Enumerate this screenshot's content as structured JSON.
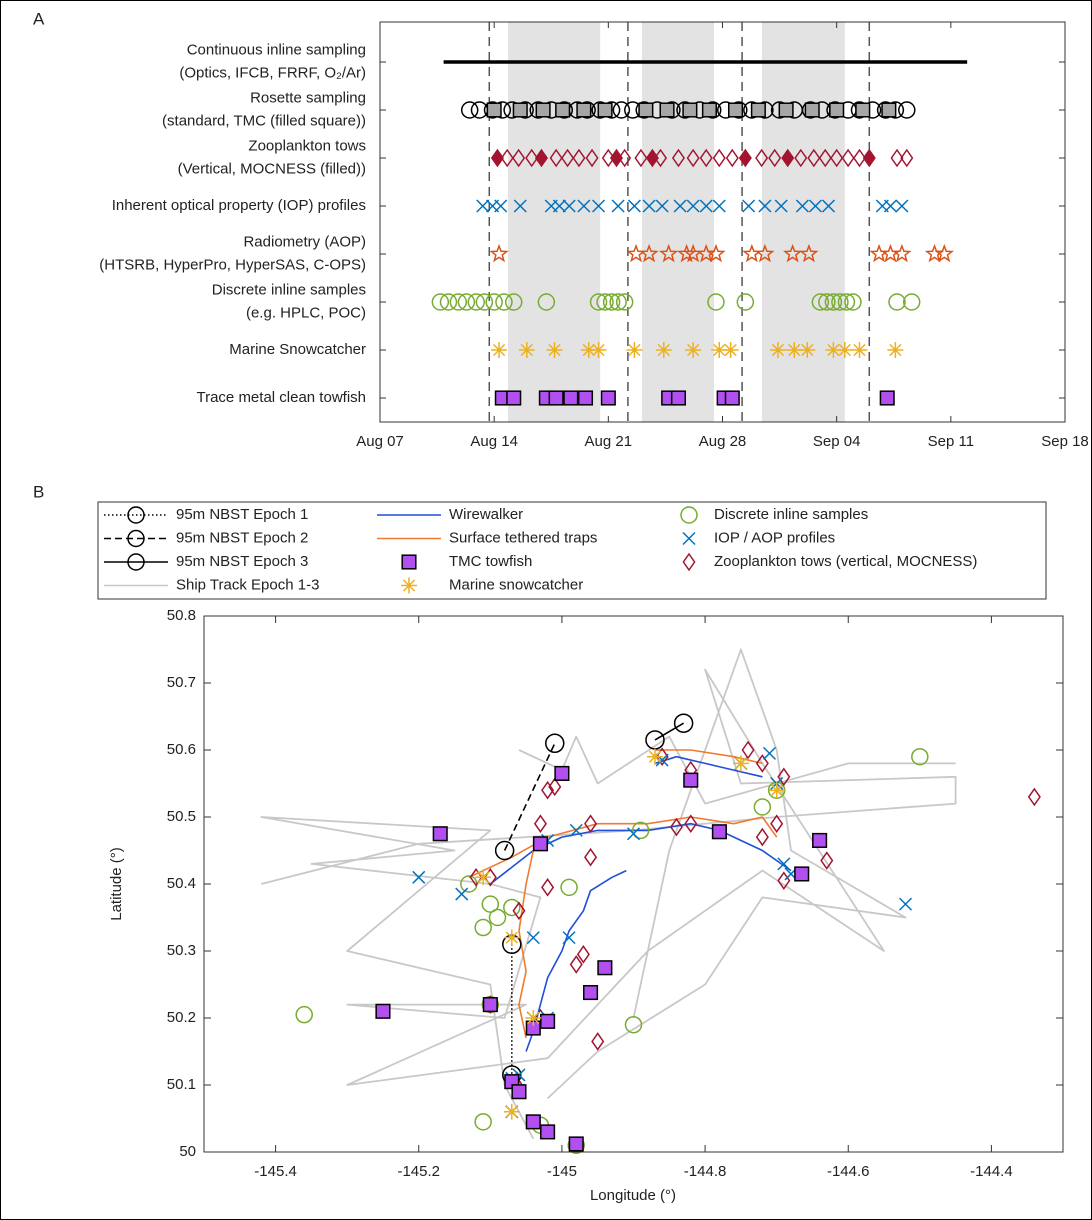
{
  "chart_data": [
    {
      "type": "timeline",
      "panel_label": "A",
      "xlim": [
        7,
        49
      ],
      "xticks": [
        {
          "value": 7,
          "label": "Aug 07"
        },
        {
          "value": 14,
          "label": "Aug 14"
        },
        {
          "value": 21,
          "label": "Aug 21"
        },
        {
          "value": 28,
          "label": "Aug 28"
        },
        {
          "value": 35,
          "label": "Sep 04"
        },
        {
          "value": 42,
          "label": "Sep 11"
        },
        {
          "value": 49,
          "label": "Sep 18"
        }
      ],
      "epoch_boundaries": [
        13.7,
        22.2,
        29.2,
        37.0
      ],
      "shaded": [
        [
          14.85,
          20.5
        ],
        [
          23.06,
          27.48
        ],
        [
          30.42,
          35.5
        ]
      ],
      "rows": [
        {
          "label": [
            "Continuous inline sampling",
            "(Optics, IFCB, FRRF, O₂/Ar)"
          ],
          "series": [
            {
              "marker": "line",
              "color": "#000000",
              "x": [
                10.9,
                43.0
              ]
            }
          ]
        },
        {
          "label": [
            "Rosette sampling",
            "(standard, TMC (filled square))"
          ],
          "series": [
            {
              "marker": "circle",
              "color": "#000000",
              "fill": "none",
              "x": [
                12.5,
                13.1,
                13.9,
                14.5,
                15.1,
                15.9,
                16.7,
                17.5,
                18.3,
                19.1,
                19.7,
                20.5,
                21.2,
                21.8,
                22.5,
                23.2,
                24.0,
                24.9,
                25.7,
                26.6,
                27.4,
                28.2,
                29.0,
                29.8,
                30.6,
                31.5,
                32.4,
                33.4,
                34.1,
                34.9,
                35.7,
                36.4,
                37.2,
                38.0,
                38.6,
                39.3
              ]
            },
            {
              "marker": "square",
              "color": "#000000",
              "fill": "#a6a6a6",
              "x": [
                14.0,
                15.6,
                17.0,
                18.2,
                19.5,
                20.8,
                23.3,
                24.6,
                26.0,
                27.2,
                28.8,
                30.2,
                31.9,
                33.5,
                35.0,
                36.6,
                38.2
              ]
            }
          ]
        },
        {
          "label": [
            "Zooplankton tows",
            "(Vertical, MOCNESS (filled))"
          ],
          "series": [
            {
              "marker": "diamond",
              "color": "#a2142f",
              "fill": "none",
              "x": [
                14.8,
                15.5,
                16.3,
                17.8,
                18.5,
                19.2,
                20.0,
                21.0,
                22.0,
                23.0,
                24.2,
                25.3,
                26.2,
                27.0,
                27.8,
                28.6,
                30.4,
                31.2,
                32.8,
                33.6,
                34.3,
                35.0,
                35.7,
                36.4,
                38.7,
                39.3
              ]
            },
            {
              "marker": "diamond",
              "color": "#a2142f",
              "fill": "#a2142f",
              "x": [
                14.2,
                16.9,
                21.5,
                23.7,
                29.4,
                32.0,
                37.0
              ]
            }
          ]
        },
        {
          "label": [
            "Inherent optical property (IOP) profiles"
          ],
          "series": [
            {
              "marker": "x",
              "color": "#0072bd",
              "fill": "none",
              "x": [
                13.3,
                13.9,
                14.4,
                15.6,
                17.5,
                18.0,
                18.6,
                19.5,
                20.4,
                21.6,
                22.6,
                23.5,
                24.3,
                25.4,
                26.2,
                27.0,
                27.8,
                29.6,
                30.6,
                31.6,
                32.9,
                33.7,
                34.5,
                37.8,
                38.3,
                39.0
              ]
            }
          ]
        },
        {
          "label": [
            "Radiometry (AOP)",
            "(HTSRB, HyperPro, HyperSAS, C-OPS)"
          ],
          "series": [
            {
              "marker": "star",
              "color": "#d95319",
              "fill": "none",
              "x": [
                14.3,
                22.7,
                23.5,
                24.7,
                25.8,
                26.2,
                27.0,
                27.6,
                29.8,
                30.6,
                32.3,
                33.3,
                37.6,
                38.3,
                39.0,
                41.0,
                41.6
              ]
            }
          ]
        },
        {
          "label": [
            "Discrete inline samples",
            "(e.g. HPLC, POC)"
          ],
          "series": [
            {
              "marker": "circle",
              "color": "#77ac30",
              "fill": "none",
              "x": [
                10.7,
                11.2,
                11.8,
                12.3,
                12.9,
                13.4,
                14.0,
                14.6,
                15.2,
                17.2,
                20.4,
                20.8,
                21.2,
                21.6,
                22.0,
                27.6,
                29.4,
                34.0,
                34.4,
                34.8,
                35.2,
                35.6,
                36.0,
                38.7,
                39.6
              ]
            }
          ]
        },
        {
          "label": [
            "Marine Snowcatcher"
          ],
          "series": [
            {
              "marker": "asterisk",
              "color": "#edb120",
              "fill": "none",
              "x": [
                14.3,
                16.0,
                17.7,
                19.8,
                20.4,
                22.6,
                24.4,
                26.2,
                27.8,
                28.5,
                31.4,
                32.4,
                33.2,
                34.8,
                35.5,
                36.4,
                38.6
              ]
            }
          ]
        },
        {
          "label": [
            "Trace metal clean towfish"
          ],
          "series": [
            {
              "marker": "square",
              "color": "#000000",
              "fill": "#b24ff0",
              "x": [
                14.5,
                15.2,
                17.2,
                17.8,
                18.7,
                19.6,
                21.0,
                24.7,
                25.3,
                28.1,
                28.6,
                38.1
              ]
            }
          ]
        }
      ]
    },
    {
      "type": "map",
      "panel_label": "B",
      "xlabel": "Longitude (°)",
      "ylabel": "Latitude (°)",
      "xlim": [
        -145.5,
        -144.3
      ],
      "ylim": [
        50,
        50.8
      ],
      "xticks": [
        -145.4,
        -145.2,
        -145,
        -144.8,
        -144.6,
        -144.4
      ],
      "yticks": [
        50,
        50.1,
        50.2,
        50.3,
        50.4,
        50.5,
        50.6,
        50.7,
        50.8
      ],
      "series": [
        {
          "name": "95m NBST Epoch 1",
          "color": "#000000",
          "line": "dotted",
          "marker": "circle",
          "fill": "none",
          "x": [
            -145.07,
            -145.07
          ],
          "y": [
            50.31,
            50.115
          ]
        },
        {
          "name": "95m NBST Epoch 2",
          "color": "#000000",
          "line": "dashed",
          "marker": "circle",
          "fill": "none",
          "x": [
            -145.08,
            -145.01
          ],
          "y": [
            50.45,
            50.61
          ]
        },
        {
          "name": "95m NBST Epoch 3",
          "color": "#000000",
          "line": "solid",
          "marker": "circle",
          "fill": "none",
          "x": [
            -144.87,
            -144.83
          ],
          "y": [
            50.615,
            50.64
          ]
        },
        {
          "name": "Ship Track Epoch 1-3",
          "color": "#c8c8c8",
          "line": "solid",
          "marker": "none",
          "fill": "none",
          "x": [
            -145.42,
            -145.2,
            -145.05,
            -144.9,
            -144.7,
            -144.45,
            -144.45,
            -144.75,
            -144.8,
            -144.72,
            -144.55,
            -144.72,
            -144.88,
            -145.02,
            -145.3,
            -145.05,
            -145.3,
            -145.08,
            -145.03,
            -145.1,
            -145.35,
            -145.15,
            -145.42,
            -145.1,
            -145.3,
            -145.1,
            -145.08,
            -145.04,
            null,
            -145.06,
            -145.0,
            -144.98,
            -144.95,
            -144.85,
            -144.8,
            -144.6,
            -144.45,
            null,
            -144.9,
            -144.85,
            -144.75,
            -144.7,
            -144.68,
            -144.6,
            -144.52,
            -144.72,
            -144.8,
            -144.95,
            -145.02
          ],
          "y": [
            50.4,
            50.46,
            50.47,
            50.48,
            50.5,
            50.52,
            50.56,
            50.55,
            50.72,
            50.58,
            50.3,
            50.42,
            50.3,
            50.14,
            50.1,
            50.22,
            50.22,
            50.2,
            50.38,
            50.4,
            50.43,
            50.45,
            50.5,
            50.48,
            50.3,
            50.25,
            50.1,
            50.02,
            null,
            50.6,
            50.57,
            50.62,
            50.55,
            50.62,
            50.52,
            50.58,
            50.58,
            null,
            50.2,
            50.45,
            50.75,
            50.6,
            50.45,
            50.4,
            50.35,
            50.38,
            50.25,
            50.15,
            50.08
          ]
        },
        {
          "name": "Wirewalker",
          "color": "#1f4fd8",
          "line": "solid",
          "marker": "none",
          "fill": "none",
          "x": [
            -144.91,
            -144.93,
            -144.96,
            -144.97,
            -144.99,
            -145.0,
            -145.02,
            -145.03,
            -145.04,
            -145.05,
            null,
            -145.1,
            -145.04,
            -145.0,
            -144.95,
            -144.88,
            -144.82,
            -144.78,
            -144.72,
            -144.68,
            null,
            -144.87,
            -144.84,
            -144.8,
            -144.76,
            -144.72
          ],
          "y": [
            50.42,
            50.41,
            50.39,
            50.36,
            50.33,
            50.3,
            50.26,
            50.22,
            50.18,
            50.15,
            null,
            50.4,
            50.45,
            50.47,
            50.48,
            50.48,
            50.49,
            50.48,
            50.45,
            50.42,
            null,
            50.58,
            50.59,
            50.58,
            50.57,
            50.56
          ]
        },
        {
          "name": "Surface tethered traps",
          "color": "#f07a30",
          "line": "solid",
          "marker": "none",
          "fill": "none",
          "x": [
            -145.13,
            -145.07,
            -145.02,
            -144.95,
            -144.88,
            -144.82,
            -144.76,
            -144.72,
            -144.7,
            null,
            -145.04,
            -145.05,
            -145.06,
            -145.05,
            -145.06,
            -145.05,
            null,
            -144.87,
            -144.82,
            -144.76,
            -144.72
          ],
          "y": [
            50.41,
            50.44,
            50.47,
            50.49,
            50.49,
            50.5,
            50.49,
            50.5,
            50.47,
            null,
            50.45,
            50.4,
            50.33,
            50.27,
            50.22,
            50.17,
            null,
            50.6,
            50.6,
            50.59,
            50.58
          ]
        },
        {
          "name": "TMC towfish",
          "color": "#000000",
          "line": "none",
          "marker": "square",
          "fill": "#b24ff0",
          "x": [
            -145.17,
            -145.25,
            -145.0,
            -144.82,
            -144.78,
            -144.64,
            -144.665,
            -144.94,
            -144.96,
            -145.1,
            -145.04,
            -145.02,
            -145.07,
            -145.06,
            -145.04,
            -145.02,
            -144.98,
            -145.03
          ],
          "y": [
            50.475,
            50.21,
            50.565,
            50.555,
            50.478,
            50.465,
            50.415,
            50.275,
            50.238,
            50.22,
            50.185,
            50.195,
            50.105,
            50.09,
            50.045,
            50.03,
            50.012,
            50.46
          ]
        },
        {
          "name": "Marine snowcatcher",
          "color": "#edb120",
          "line": "none",
          "marker": "asterisk",
          "fill": "none",
          "x": [
            -145.07,
            -145.04,
            -145.11,
            -144.7,
            -144.75,
            -144.87,
            -145.07
          ],
          "y": [
            50.32,
            50.2,
            50.41,
            50.54,
            50.58,
            50.59,
            50.06
          ]
        },
        {
          "name": "Discrete inline samples",
          "color": "#77ac30",
          "line": "none",
          "marker": "circle",
          "fill": "none",
          "x": [
            -145.36,
            -145.1,
            -145.11,
            -145.09,
            -145.07,
            -144.99,
            -145.13,
            -144.9,
            -145.11,
            -145.03,
            -144.98,
            -144.5,
            -144.72,
            -144.7,
            -144.89,
            -145.1
          ],
          "y": [
            50.205,
            50.37,
            50.335,
            50.35,
            50.365,
            50.395,
            50.4,
            50.19,
            50.045,
            50.04,
            50.01,
            50.59,
            50.515,
            50.54,
            50.48,
            50.22
          ]
        },
        {
          "name": "IOP / AOP profiles",
          "color": "#0072bd",
          "line": "none",
          "marker": "x",
          "fill": "none",
          "x": [
            -145.2,
            -145.14,
            -145.11,
            -145.04,
            -144.99,
            -144.52,
            -144.69,
            -144.68,
            -144.71,
            -144.7,
            -144.75,
            -144.86,
            -144.98,
            -145.02,
            -145.07,
            -145.07,
            -145.04,
            -145.02,
            -144.9,
            -145.06
          ],
          "y": [
            50.41,
            50.385,
            50.41,
            50.32,
            50.32,
            50.37,
            50.43,
            50.415,
            50.595,
            50.55,
            50.58,
            50.585,
            50.48,
            50.465,
            50.06,
            50.11,
            50.2,
            50.2,
            50.475,
            50.115
          ]
        },
        {
          "name": "Zooplankton tows (vertical, MOCNESS)",
          "color": "#a2142f",
          "line": "none",
          "marker": "diamond",
          "fill": "none",
          "x": [
            -144.34,
            -144.63,
            -144.69,
            -144.72,
            -144.7,
            -144.74,
            -144.72,
            -144.69,
            -144.82,
            -144.86,
            -144.82,
            -144.84,
            -144.96,
            -144.96,
            -145.03,
            -145.02,
            -145.01,
            -145.02,
            -145.06,
            -145.1,
            -145.12,
            -144.98,
            -144.97,
            -144.95,
            -145.06,
            -145.1,
            -145.03
          ],
          "y": [
            50.53,
            50.435,
            50.405,
            50.47,
            50.49,
            50.6,
            50.58,
            50.56,
            50.57,
            50.59,
            50.49,
            50.485,
            50.49,
            50.44,
            50.49,
            50.54,
            50.545,
            50.395,
            50.36,
            50.41,
            50.41,
            50.28,
            50.295,
            50.165,
            50.095,
            50.22,
            50.2
          ]
        }
      ]
    }
  ]
}
